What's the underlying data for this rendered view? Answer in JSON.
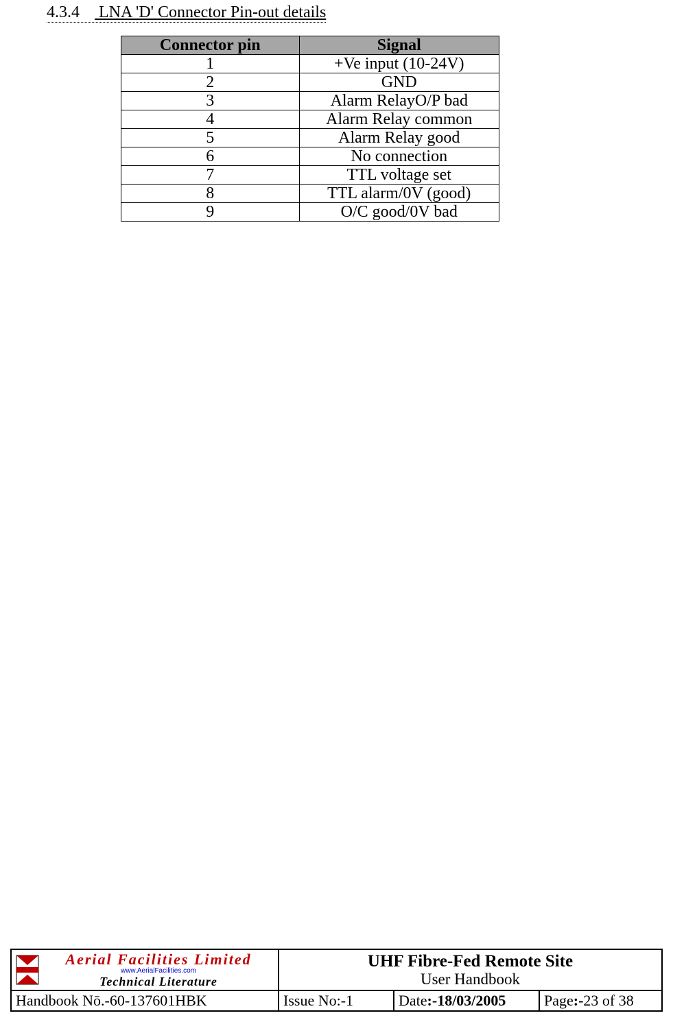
{
  "section": {
    "number": "4.3.4",
    "title": "LNA 'D' Connector Pin-out details"
  },
  "pinout_table": {
    "columns": [
      "Connector pin",
      "Signal"
    ],
    "header_bg": "#a6a6a6",
    "border_color": "#000000",
    "rows": [
      [
        "1",
        "+Ve input (10-24V)"
      ],
      [
        "2",
        "GND"
      ],
      [
        "3",
        "Alarm RelayO/P bad"
      ],
      [
        "4",
        "Alarm Relay common"
      ],
      [
        "5",
        "Alarm Relay good"
      ],
      [
        "6",
        "No connection"
      ],
      [
        "7",
        "TTL voltage set"
      ],
      [
        "8",
        "TTL alarm/0V (good)"
      ],
      [
        "9",
        "O/C good/0V bad"
      ]
    ]
  },
  "footer": {
    "logo": {
      "line1": "Aerial  Facilities  Limited",
      "line2": "www.AerialFacilities.com",
      "line3": "Technical Literature",
      "flag_colors": {
        "red": "#c00000",
        "white": "#ffffff",
        "border": "#000000"
      }
    },
    "title_main": "UHF Fibre-Fed Remote Site",
    "title_sub": "User Handbook",
    "handbook_label": "Handbook Nō.-",
    "handbook_value": "60-137601HBK",
    "issue_label": "Issue No:-",
    "issue_value": "1",
    "date_label": "Date",
    "date_sep": ":-",
    "date_value": "18/03/2005",
    "page_label": "Page",
    "page_sep": ":-",
    "page_value": "23 of 38"
  }
}
